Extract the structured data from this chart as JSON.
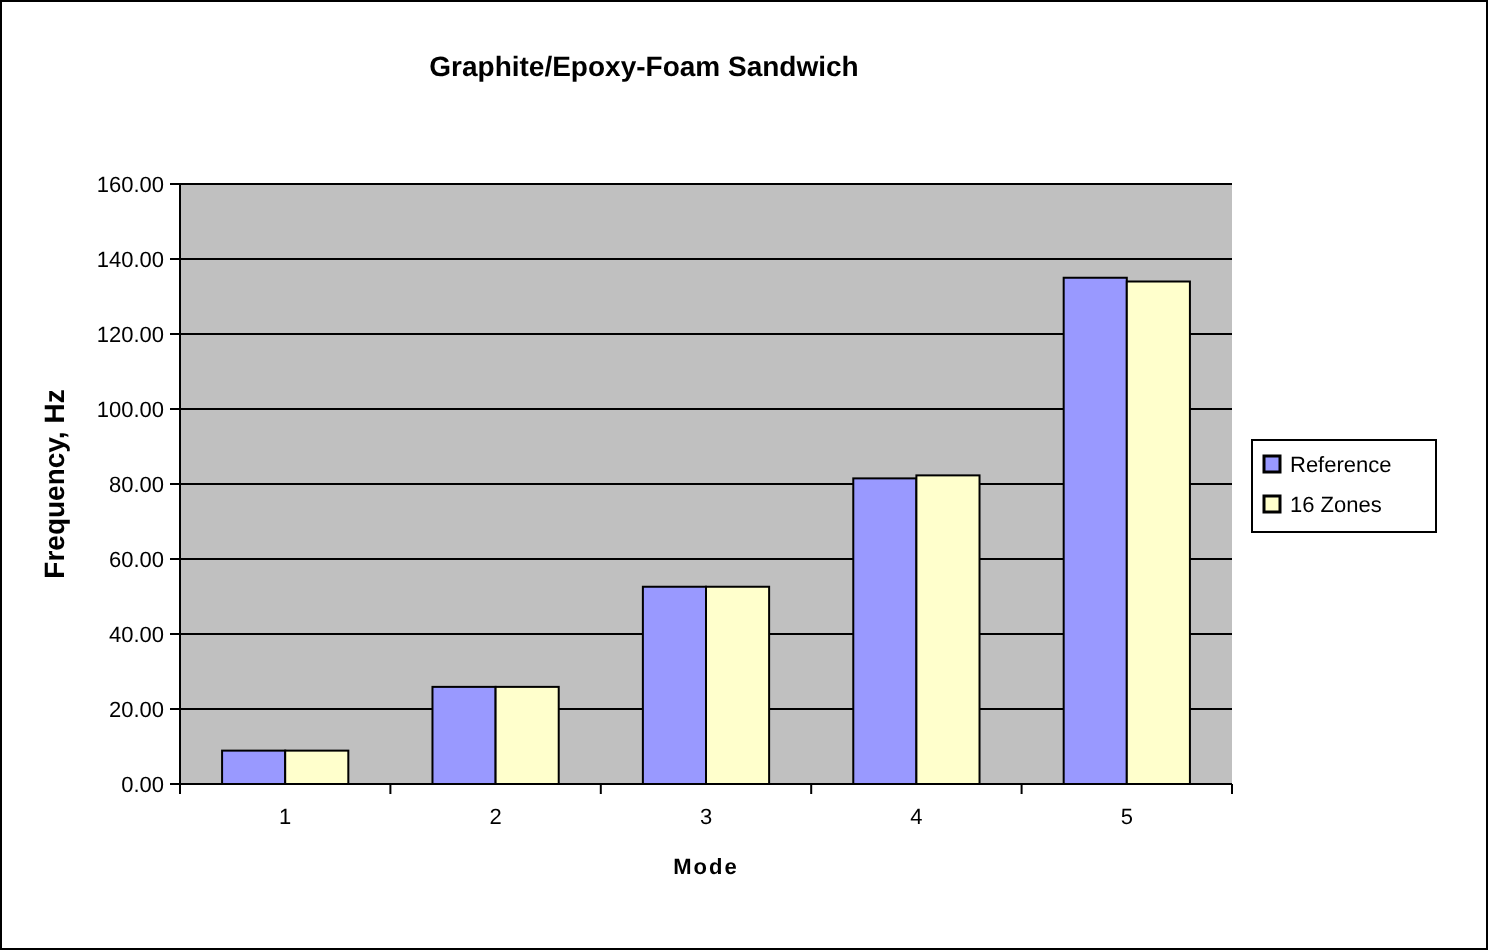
{
  "chart_data": {
    "type": "bar",
    "title": "Graphite/Epoxy-Foam Sandwich",
    "xlabel": "Mode",
    "ylabel": "Frequency, Hz",
    "categories": [
      "1",
      "2",
      "3",
      "4",
      "5"
    ],
    "series": [
      {
        "name": "Reference",
        "color": "#9999ff",
        "values": [
          8.9,
          25.9,
          52.6,
          81.5,
          135
        ]
      },
      {
        "name": "16 Zones",
        "color": "#ffffcc",
        "values": [
          8.9,
          25.9,
          52.6,
          82.3,
          134
        ]
      }
    ],
    "ylim": [
      0,
      160
    ],
    "yticks": [
      {
        "value": 0,
        "label": "0.00"
      },
      {
        "value": 20,
        "label": "20.00"
      },
      {
        "value": 40,
        "label": "40.00"
      },
      {
        "value": 60,
        "label": "60.00"
      },
      {
        "value": 80,
        "label": "80.00"
      },
      {
        "value": 100,
        "label": "100.00"
      },
      {
        "value": 120,
        "label": "120.00"
      },
      {
        "value": 140,
        "label": "140.00"
      },
      {
        "value": 160,
        "label": "160.00"
      }
    ],
    "grid": "y",
    "legend": "right"
  }
}
